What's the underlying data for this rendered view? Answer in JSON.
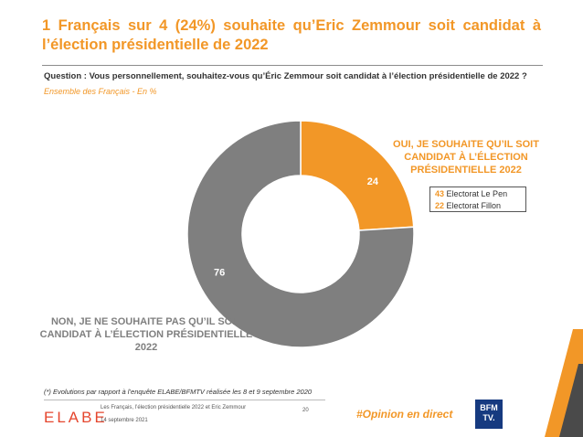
{
  "title": "1 Français sur 4 (24%) souhaite qu’Eric Zemmour soit candidat à l’élection présidentielle de 2022",
  "question": "Question : Vous personnellement, souhaitez-vous qu’Éric Zemmour soit candidat à l’élection présidentielle de 2022 ?",
  "subtitle": "Ensemble des Français - En  %",
  "chart_data": {
    "type": "pie",
    "donut": true,
    "slices": [
      {
        "label": "OUI, JE SOUHAITE QU’IL SOIT CANDIDAT À L’ÉLECTION PRÉSIDENTIELLE 2022",
        "value": 24,
        "value_label": "24",
        "color": "#F29727"
      },
      {
        "label": "NON, JE NE SOUHAITE PAS QU’IL SOIT CANDIDAT À L’ÉLECTION PRÉSIDENTIELLE 2022",
        "value": 76,
        "value_label": "76",
        "color": "#7f7f7f"
      }
    ],
    "breakdown": [
      {
        "value": "43",
        "label": "Electorat Le Pen"
      },
      {
        "value": "22",
        "label": "Electorat Fillon"
      }
    ]
  },
  "footnote": "(*) Evolutions par rapport à l’enquête ELABE/BFMTV réalisée les 8 et 9 septembre 2020",
  "footer": {
    "brand": "ELABE",
    "study": "Les Français, l’élection présidentielle 2022 et Eric Zemmour",
    "date": "14 septembre 2021",
    "page": "20",
    "hashtag": "#Opinion en direct",
    "partner_line1": "BFM",
    "partner_line2": "TV."
  },
  "colors": {
    "accent": "#F29727",
    "grey": "#7f7f7f",
    "brand_red": "#E5462E",
    "partner_blue": "#163a80"
  }
}
